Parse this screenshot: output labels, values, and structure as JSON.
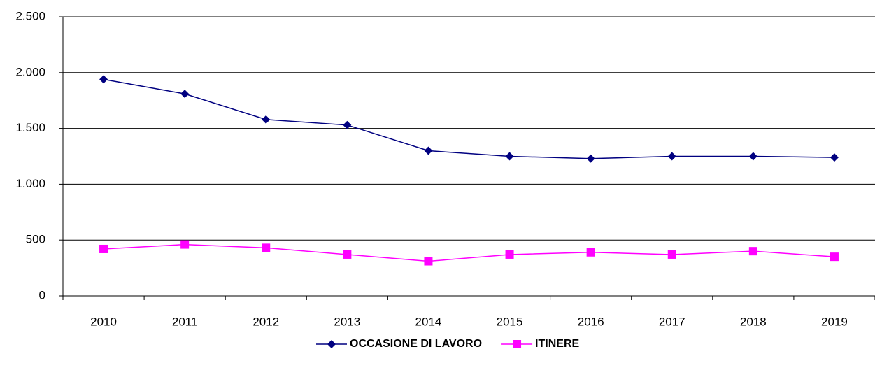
{
  "chart_data": {
    "type": "line",
    "categories": [
      "2010",
      "2011",
      "2012",
      "2013",
      "2014",
      "2015",
      "2016",
      "2017",
      "2018",
      "2019"
    ],
    "series": [
      {
        "name": "OCCASIONE DI LAVORO",
        "color": "#000080",
        "marker": "diamond",
        "values": [
          1940,
          1810,
          1580,
          1530,
          1300,
          1250,
          1230,
          1250,
          1250,
          1240
        ]
      },
      {
        "name": "ITINERE",
        "color": "#ff00ff",
        "marker": "square",
        "values": [
          420,
          460,
          430,
          370,
          310,
          370,
          390,
          370,
          400,
          350
        ]
      }
    ],
    "ylim": [
      0,
      2500
    ],
    "yticks": [
      0,
      500,
      {
        "value": 1000,
        "label": "1.000"
      },
      {
        "value": 1500,
        "label": "1.500"
      },
      {
        "value": 2000,
        "label": "2.000"
      },
      {
        "value": 2500,
        "label": "2.500"
      }
    ],
    "grid": true,
    "legend": "bottom"
  }
}
